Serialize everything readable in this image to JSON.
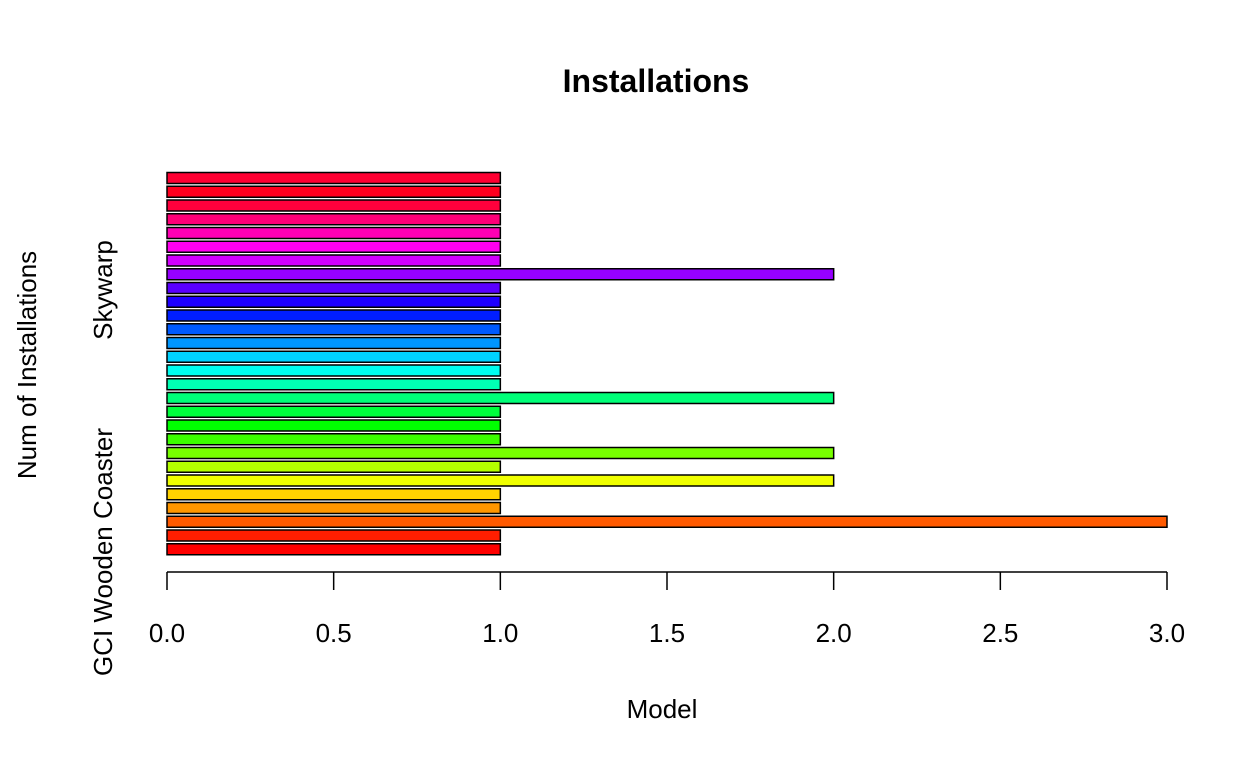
{
  "chart_data": {
    "type": "bar",
    "orientation": "horizontal",
    "title": "Installations",
    "xlabel": "Model",
    "ylabel": "Num of Installations",
    "xlim": [
      0,
      3
    ],
    "x_ticks": [
      "0.0",
      "0.5",
      "1.0",
      "1.5",
      "2.0",
      "2.5",
      "3.0"
    ],
    "y_tick_labels": [
      "GCI Wooden Coaster",
      "Skywarp"
    ],
    "values": [
      1,
      1,
      3,
      1,
      1,
      2,
      1,
      2,
      1,
      1,
      1,
      2,
      1,
      1,
      1,
      1,
      1,
      1,
      1,
      1,
      2,
      1,
      1,
      1,
      1,
      1,
      1,
      1
    ],
    "colors": [
      "#FF0000",
      "#FF1E00",
      "#FF5A00",
      "#FF9600",
      "#FFD200",
      "#F0FF00",
      "#B4FF00",
      "#78FF00",
      "#3CFF00",
      "#00FF00",
      "#00FF3C",
      "#00FF78",
      "#00FFB4",
      "#00FFF0",
      "#00D2FF",
      "#0096FF",
      "#005AFF",
      "#001EFF",
      "#1E00FF",
      "#5A00FF",
      "#9600FF",
      "#D200FF",
      "#FF00F0",
      "#FF00B4",
      "#FF0078",
      "#FF003C",
      "#FF001E",
      "#FF0032"
    ],
    "grid": false,
    "legend": "none"
  }
}
